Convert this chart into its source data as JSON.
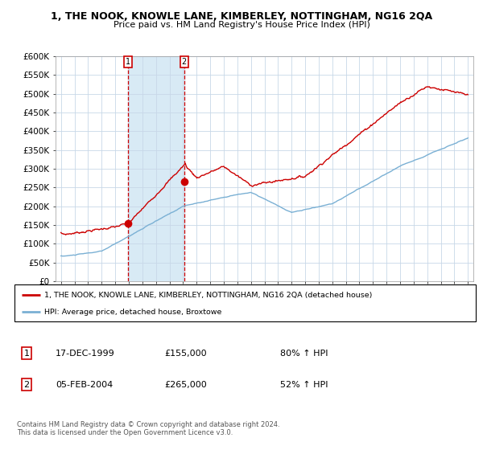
{
  "title": "1, THE NOOK, KNOWLE LANE, KIMBERLEY, NOTTINGHAM, NG16 2QA",
  "subtitle": "Price paid vs. HM Land Registry's House Price Index (HPI)",
  "hpi_color": "#7ab0d4",
  "hpi_fill_color": "#d8eaf5",
  "price_color": "#cc0000",
  "transaction1_date": "17-DEC-1999",
  "transaction1_price": 155000,
  "transaction1_pct": "80% ↑ HPI",
  "transaction2_date": "05-FEB-2004",
  "transaction2_price": 265000,
  "transaction2_pct": "52% ↑ HPI",
  "legend1": "1, THE NOOK, KNOWLE LANE, KIMBERLEY, NOTTINGHAM, NG16 2QA (detached house)",
  "legend2": "HPI: Average price, detached house, Broxtowe",
  "footer1": "Contains HM Land Registry data © Crown copyright and database right 2024.",
  "footer2": "This data is licensed under the Open Government Licence v3.0.",
  "ylim": [
    0,
    600000
  ],
  "yticks": [
    0,
    50000,
    100000,
    150000,
    200000,
    250000,
    300000,
    350000,
    400000,
    450000,
    500000,
    550000,
    600000
  ]
}
